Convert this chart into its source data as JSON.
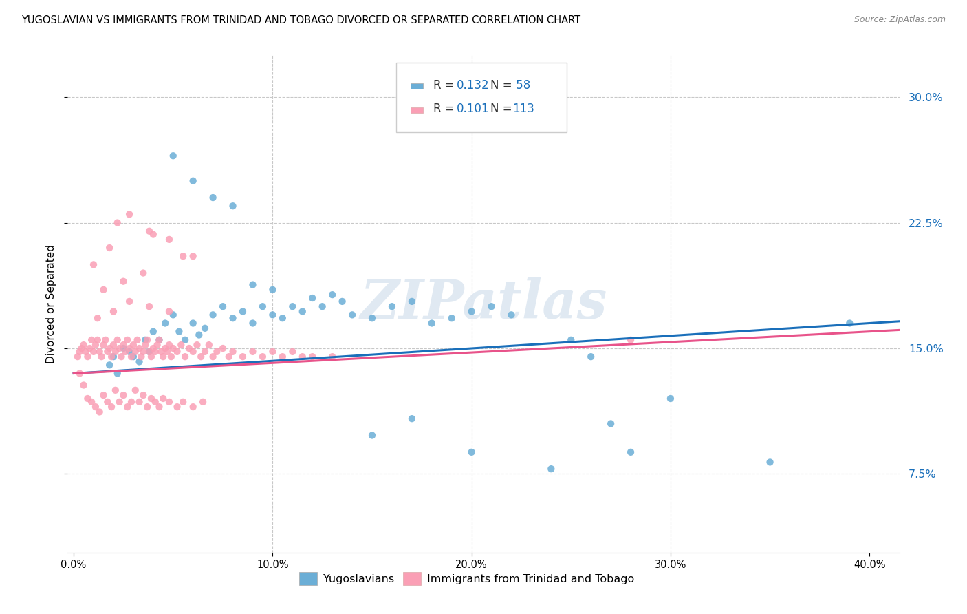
{
  "title": "YUGOSLAVIAN VS IMMIGRANTS FROM TRINIDAD AND TOBAGO DIVORCED OR SEPARATED CORRELATION CHART",
  "source": "Source: ZipAtlas.com",
  "ylabel": "Divorced or Separated",
  "ytick_values": [
    0.075,
    0.15,
    0.225,
    0.3
  ],
  "xlim": [
    -0.003,
    0.415
  ],
  "ylim": [
    0.028,
    0.325
  ],
  "watermark": "ZIPatlas",
  "color_blue": "#6baed6",
  "color_pink": "#fa9fb5",
  "trendline_blue": "#1a6fba",
  "trendline_pink": "#e8538a",
  "legend_label1": "Yugoslavians",
  "legend_label2": "Immigrants from Trinidad and Tobago",
  "blue_x": [
    0.018,
    0.02,
    0.022,
    0.025,
    0.028,
    0.03,
    0.033,
    0.036,
    0.038,
    0.04,
    0.043,
    0.046,
    0.05,
    0.053,
    0.056,
    0.06,
    0.063,
    0.066,
    0.07,
    0.075,
    0.08,
    0.085,
    0.09,
    0.095,
    0.1,
    0.105,
    0.11,
    0.115,
    0.12,
    0.125,
    0.13,
    0.135,
    0.14,
    0.15,
    0.16,
    0.17,
    0.18,
    0.19,
    0.2,
    0.21,
    0.22,
    0.25,
    0.26,
    0.27,
    0.28,
    0.3,
    0.35,
    0.39,
    0.05,
    0.06,
    0.07,
    0.08,
    0.09,
    0.1,
    0.15,
    0.17,
    0.2,
    0.24
  ],
  "blue_y": [
    0.14,
    0.145,
    0.135,
    0.15,
    0.148,
    0.145,
    0.142,
    0.155,
    0.148,
    0.16,
    0.155,
    0.165,
    0.17,
    0.16,
    0.155,
    0.165,
    0.158,
    0.162,
    0.17,
    0.175,
    0.168,
    0.172,
    0.165,
    0.175,
    0.17,
    0.168,
    0.175,
    0.172,
    0.18,
    0.175,
    0.182,
    0.178,
    0.17,
    0.168,
    0.175,
    0.178,
    0.165,
    0.168,
    0.172,
    0.175,
    0.17,
    0.155,
    0.145,
    0.105,
    0.088,
    0.12,
    0.082,
    0.165,
    0.265,
    0.25,
    0.24,
    0.235,
    0.188,
    0.185,
    0.098,
    0.108,
    0.088,
    0.078
  ],
  "pink_x": [
    0.002,
    0.003,
    0.004,
    0.005,
    0.006,
    0.007,
    0.008,
    0.009,
    0.01,
    0.011,
    0.012,
    0.013,
    0.014,
    0.015,
    0.016,
    0.017,
    0.018,
    0.019,
    0.02,
    0.021,
    0.022,
    0.023,
    0.024,
    0.025,
    0.026,
    0.027,
    0.028,
    0.029,
    0.03,
    0.031,
    0.032,
    0.033,
    0.034,
    0.035,
    0.036,
    0.037,
    0.038,
    0.039,
    0.04,
    0.041,
    0.042,
    0.043,
    0.044,
    0.045,
    0.046,
    0.047,
    0.048,
    0.049,
    0.05,
    0.052,
    0.054,
    0.056,
    0.058,
    0.06,
    0.062,
    0.064,
    0.066,
    0.068,
    0.07,
    0.072,
    0.075,
    0.078,
    0.08,
    0.085,
    0.09,
    0.095,
    0.1,
    0.105,
    0.11,
    0.115,
    0.12,
    0.13,
    0.003,
    0.005,
    0.007,
    0.009,
    0.011,
    0.013,
    0.015,
    0.017,
    0.019,
    0.021,
    0.023,
    0.025,
    0.027,
    0.029,
    0.031,
    0.033,
    0.035,
    0.037,
    0.039,
    0.041,
    0.043,
    0.045,
    0.048,
    0.052,
    0.055,
    0.06,
    0.065,
    0.012,
    0.02,
    0.028,
    0.038,
    0.048,
    0.015,
    0.025,
    0.035,
    0.01,
    0.018,
    0.028,
    0.038,
    0.048,
    0.06,
    0.022,
    0.04,
    0.055,
    0.28
  ],
  "pink_y": [
    0.145,
    0.148,
    0.15,
    0.152,
    0.148,
    0.145,
    0.15,
    0.155,
    0.148,
    0.152,
    0.155,
    0.148,
    0.145,
    0.152,
    0.155,
    0.148,
    0.15,
    0.145,
    0.152,
    0.148,
    0.155,
    0.15,
    0.145,
    0.152,
    0.148,
    0.155,
    0.15,
    0.145,
    0.152,
    0.148,
    0.155,
    0.15,
    0.145,
    0.148,
    0.152,
    0.155,
    0.148,
    0.145,
    0.15,
    0.148,
    0.152,
    0.155,
    0.148,
    0.145,
    0.15,
    0.148,
    0.152,
    0.145,
    0.15,
    0.148,
    0.152,
    0.145,
    0.15,
    0.148,
    0.152,
    0.145,
    0.148,
    0.152,
    0.145,
    0.148,
    0.15,
    0.145,
    0.148,
    0.145,
    0.148,
    0.145,
    0.148,
    0.145,
    0.148,
    0.145,
    0.145,
    0.145,
    0.135,
    0.128,
    0.12,
    0.118,
    0.115,
    0.112,
    0.122,
    0.118,
    0.115,
    0.125,
    0.118,
    0.122,
    0.115,
    0.118,
    0.125,
    0.118,
    0.122,
    0.115,
    0.12,
    0.118,
    0.115,
    0.12,
    0.118,
    0.115,
    0.118,
    0.115,
    0.118,
    0.168,
    0.172,
    0.178,
    0.175,
    0.172,
    0.185,
    0.19,
    0.195,
    0.2,
    0.21,
    0.23,
    0.22,
    0.215,
    0.205,
    0.225,
    0.218,
    0.205,
    0.155
  ]
}
